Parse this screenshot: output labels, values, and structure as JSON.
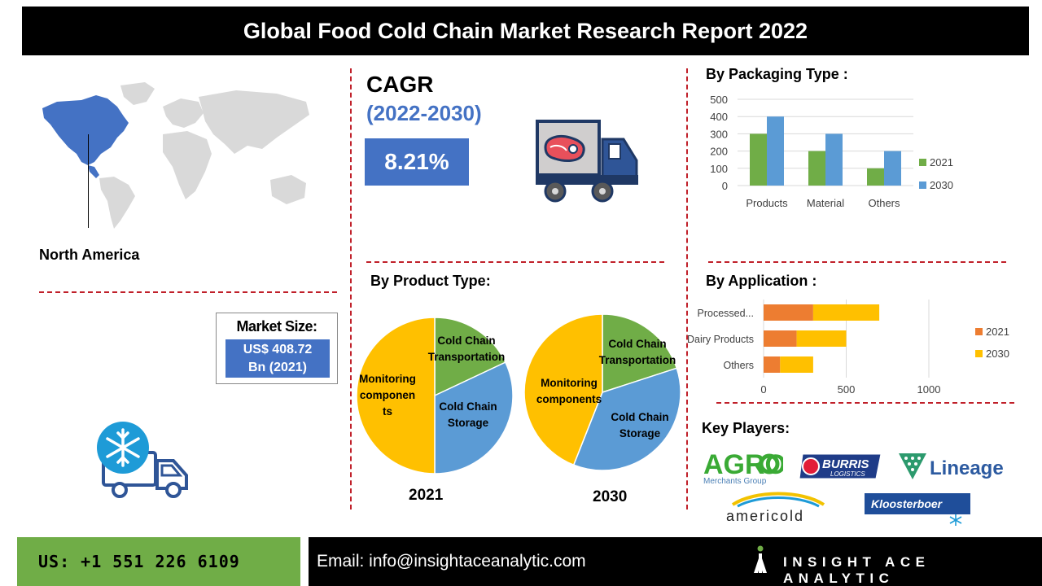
{
  "header": {
    "title": "Global Food Cold Chain Market Research Report 2022"
  },
  "map": {
    "region_label": "North America"
  },
  "market_size": {
    "title": "Market Size:",
    "value_line1": "US$ 408.72",
    "value_line2": "Bn (2021)"
  },
  "cagr": {
    "title": "CAGR",
    "period": "(2022-2030)",
    "value": "8.21%"
  },
  "sections": {
    "packaging": "By Packaging Type :",
    "product": "By Product Type:",
    "application": "By Application :",
    "key_players": "Key Players:"
  },
  "colors": {
    "green": "#70ad47",
    "blue": "#5b9bd5",
    "orange": "#ed7d31",
    "yellow": "#ffc000",
    "accent": "#4472c4",
    "divider": "#c0202a"
  },
  "chart_data": [
    {
      "type": "bar",
      "title": "By Packaging Type :",
      "categories": [
        "Products",
        "Material",
        "Others"
      ],
      "series": [
        {
          "name": "2021",
          "values": [
            300,
            200,
            100
          ],
          "color": "#70ad47"
        },
        {
          "name": "2030",
          "values": [
            400,
            300,
            200
          ],
          "color": "#5b9bd5"
        }
      ],
      "yticks": [
        "0",
        "100",
        "200",
        "300",
        "400",
        "500"
      ],
      "ylim": [
        0,
        500
      ],
      "legend": "right"
    },
    {
      "type": "pie",
      "title": "By Product Type:",
      "year": "2021",
      "slices": [
        {
          "label": "Cold Chain Transportation",
          "value": 18,
          "color": "#70ad47"
        },
        {
          "label": "Cold Chain Storage",
          "value": 32,
          "color": "#5b9bd5"
        },
        {
          "label": "Monitoring componen ts",
          "value": 50,
          "color": "#ffc000"
        }
      ]
    },
    {
      "type": "pie",
      "year": "2030",
      "slices": [
        {
          "label": "Cold Chain Transportation",
          "value": 20,
          "color": "#70ad47"
        },
        {
          "label": "Cold Chain Storage",
          "value": 36,
          "color": "#5b9bd5"
        },
        {
          "label": "Monitoring components",
          "value": 44,
          "color": "#ffc000"
        }
      ]
    },
    {
      "type": "bar",
      "orientation": "horizontal",
      "stacked": true,
      "title": "By Application :",
      "categories": [
        "Processed...",
        "Dairy Products",
        "Others"
      ],
      "series": [
        {
          "name": "2021",
          "values": [
            300,
            200,
            100
          ],
          "color": "#ed7d31"
        },
        {
          "name": "2030",
          "values": [
            400,
            300,
            200
          ],
          "color": "#ffc000"
        }
      ],
      "xticks": [
        "0",
        "500",
        "1000"
      ],
      "xlim": [
        0,
        1000
      ],
      "legend": "right"
    }
  ],
  "key_players": {
    "agro": {
      "name_main": "AGRO",
      "name_sub": "Merchants Group"
    },
    "burris": {
      "name_main": "BURRIS",
      "name_sub": "LOGISTICS"
    },
    "lineage": {
      "name": "Lineage"
    },
    "americold": {
      "name": "americold"
    },
    "kloosterboer": {
      "name": "Kloosterboer"
    }
  },
  "footer": {
    "phone": "US: +1 551 226 6109",
    "email": "Email: info@insightaceanalytic.com",
    "brand": "INSIGHT ACE ANALYTIC"
  }
}
